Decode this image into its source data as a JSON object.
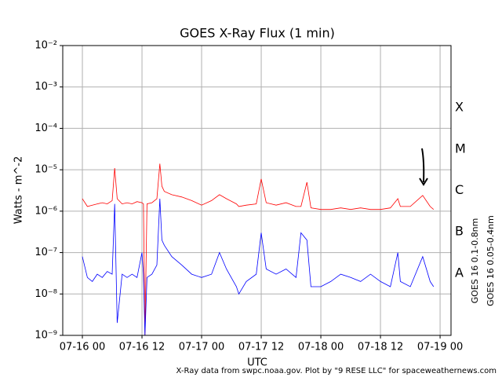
{
  "chart_data": {
    "type": "line",
    "title": "GOES X-Ray Flux (1 min)",
    "xlabel": "UTC",
    "ylabel": "Watts - m^-2",
    "footnote": "X-Ray data from swpc.noaa.gov. Plot by \"9 RESE LLC\" for spaceweathernews.com",
    "flare_classes": [
      "X",
      "M",
      "C",
      "B",
      "A"
    ],
    "log_y": true,
    "grid": true,
    "x": [
      0,
      1,
      2,
      3,
      4,
      5,
      6,
      6.5,
      7,
      8,
      9,
      10,
      11,
      12,
      12.3,
      12.6,
      13,
      14,
      15,
      15.6,
      16,
      16.5,
      18,
      20,
      22,
      24,
      26,
      27.6,
      29,
      31,
      31.5,
      33,
      35,
      36,
      37,
      39,
      41,
      43,
      44,
      45.2,
      46,
      48,
      50,
      52,
      54,
      56,
      58,
      60,
      62,
      63.5,
      64,
      66,
      68.5,
      70,
      70.7
    ],
    "series": [
      {
        "name": "GOES 16 0.1-0.8nm",
        "color": "#ff0000",
        "values": [
          2e-06,
          1.3e-06,
          1.4e-06,
          1.5e-06,
          1.6e-06,
          1.5e-06,
          1.8e-06,
          1.1e-05,
          2e-06,
          1.5e-06,
          1.6e-06,
          1.5e-06,
          1.7e-06,
          1.6e-06,
          1.5e-06,
          1e-09,
          1.5e-06,
          1.6e-06,
          2e-06,
          1.4e-05,
          4e-06,
          3e-06,
          2.5e-06,
          2.2e-06,
          1.8e-06,
          1.4e-06,
          1.8e-06,
          2.5e-06,
          2e-06,
          1.5e-06,
          1.3e-06,
          1.4e-06,
          1.5e-06,
          6e-06,
          1.6e-06,
          1.4e-06,
          1.6e-06,
          1.3e-06,
          1.3e-06,
          5e-06,
          1.2e-06,
          1.1e-06,
          1.1e-06,
          1.2e-06,
          1.1e-06,
          1.2e-06,
          1.1e-06,
          1.1e-06,
          1.2e-06,
          2e-06,
          1.3e-06,
          1.3e-06,
          2.4e-06,
          1.3e-06,
          1.1e-06
        ]
      },
      {
        "name": "GOES 16 0.05-0.4nm",
        "color": "#0000ff",
        "values": [
          8e-08,
          2.5e-08,
          2e-08,
          3e-08,
          2.5e-08,
          3.5e-08,
          3e-08,
          1.5e-06,
          2e-09,
          3e-08,
          2.5e-08,
          3e-08,
          2.5e-08,
          1e-07,
          3e-08,
          1e-09,
          2.5e-08,
          3e-08,
          5e-08,
          2e-06,
          2e-07,
          1.5e-07,
          8e-08,
          5e-08,
          3e-08,
          2.5e-08,
          3e-08,
          1e-07,
          4e-08,
          1.5e-08,
          1e-08,
          2e-08,
          3e-08,
          3e-07,
          4e-08,
          3e-08,
          4e-08,
          2.5e-08,
          3e-07,
          2e-07,
          1.5e-08,
          1.5e-08,
          2e-08,
          3e-08,
          2.5e-08,
          2e-08,
          3e-08,
          2e-08,
          1.5e-08,
          1e-07,
          2e-08,
          1.5e-08,
          8e-08,
          2e-08,
          1.5e-08
        ]
      }
    ],
    "xlim": [
      -3.95,
      74.2
    ],
    "xticks": [
      {
        "value": 0,
        "label": "07-16 00"
      },
      {
        "value": 12,
        "label": "07-16 12"
      },
      {
        "value": 24,
        "label": "07-17 00"
      },
      {
        "value": 36,
        "label": "07-17 12"
      },
      {
        "value": 48,
        "label": "07-18 00"
      },
      {
        "value": 60,
        "label": "07-18 12"
      },
      {
        "value": 72,
        "label": "07-19 00"
      }
    ],
    "ylim": [
      1e-09,
      0.01
    ],
    "yticks": [
      {
        "value": 1e-09,
        "label": "10⁻⁹"
      },
      {
        "value": 1e-08,
        "label": "10⁻⁸"
      },
      {
        "value": 1e-07,
        "label": "10⁻⁷"
      },
      {
        "value": 1e-06,
        "label": "10⁻⁶"
      },
      {
        "value": 1e-05,
        "label": "10⁻⁵"
      },
      {
        "value": 0.0001,
        "label": "10⁻⁴"
      },
      {
        "value": 0.001,
        "label": "10⁻³"
      },
      {
        "value": 0.01,
        "label": "10⁻²"
      }
    ]
  }
}
